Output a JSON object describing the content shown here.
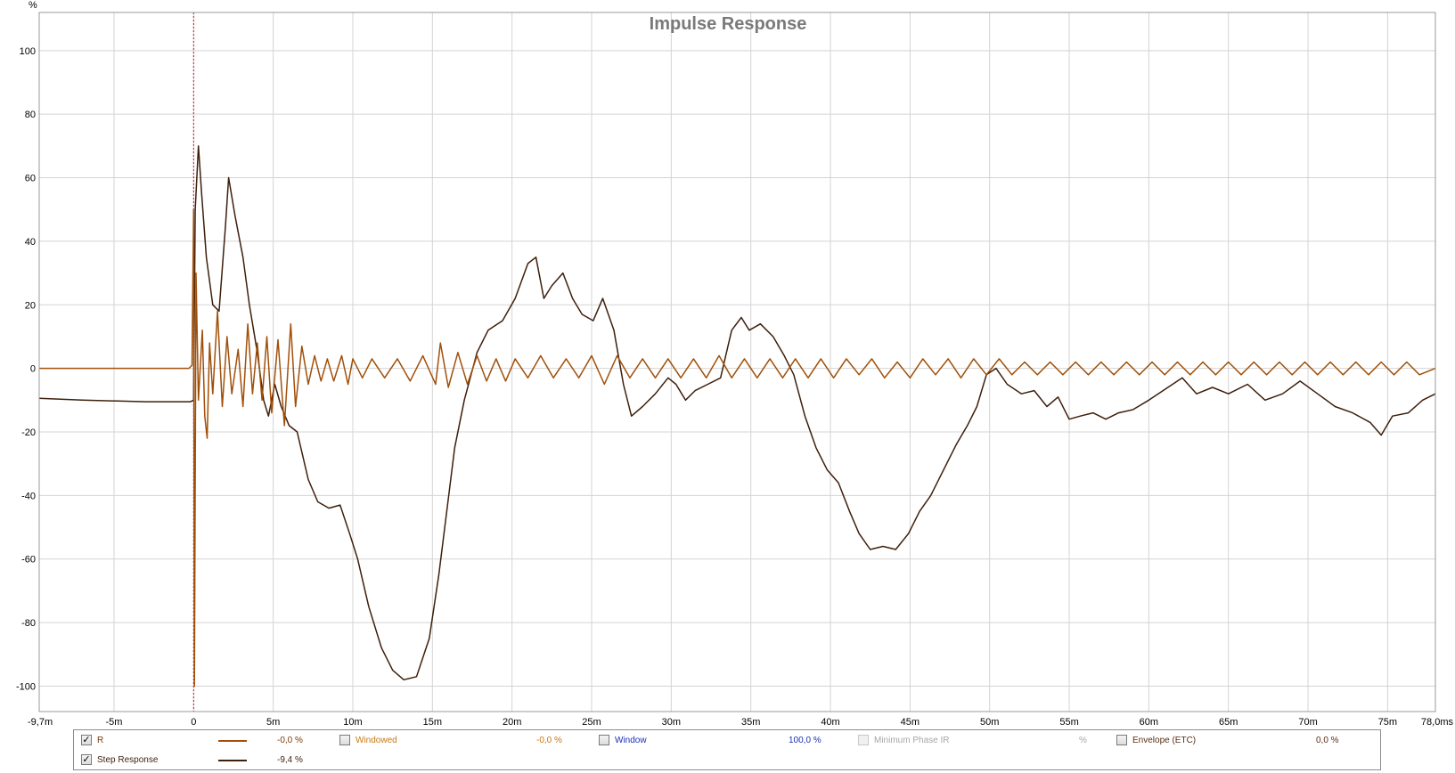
{
  "chart_data": {
    "type": "line",
    "title": "Impulse Response",
    "y_unit": "%",
    "x_unit": "ms",
    "xlim": [
      -9.7,
      78.0
    ],
    "ylim": [
      -108,
      112
    ],
    "grid": true,
    "x_ticks": [
      {
        "v": -9.7,
        "label": "-9,7m"
      },
      {
        "v": -5,
        "label": "-5m"
      },
      {
        "v": 0,
        "label": "0"
      },
      {
        "v": 5,
        "label": "5m"
      },
      {
        "v": 10,
        "label": "10m"
      },
      {
        "v": 15,
        "label": "15m"
      },
      {
        "v": 20,
        "label": "20m"
      },
      {
        "v": 25,
        "label": "25m"
      },
      {
        "v": 30,
        "label": "30m"
      },
      {
        "v": 35,
        "label": "35m"
      },
      {
        "v": 40,
        "label": "40m"
      },
      {
        "v": 45,
        "label": "45m"
      },
      {
        "v": 50,
        "label": "50m"
      },
      {
        "v": 55,
        "label": "55m"
      },
      {
        "v": 60,
        "label": "60m"
      },
      {
        "v": 65,
        "label": "65m"
      },
      {
        "v": 70,
        "label": "70m"
      },
      {
        "v": 75,
        "label": "75m"
      },
      {
        "v": 78,
        "label": "78,0ms"
      }
    ],
    "y_ticks": [
      100,
      80,
      60,
      40,
      20,
      0,
      -20,
      -40,
      -60,
      -80,
      -100
    ],
    "marker_x": 0,
    "series": [
      {
        "name": "Step Response",
        "color": "#3d1f0c",
        "points": [
          [
            -9.7,
            -9.4
          ],
          [
            -7,
            -10
          ],
          [
            -3,
            -10.5
          ],
          [
            -0.2,
            -10.5
          ],
          [
            0,
            -10
          ],
          [
            0.1,
            50
          ],
          [
            0.3,
            70
          ],
          [
            0.5,
            55
          ],
          [
            0.8,
            35
          ],
          [
            1.2,
            20
          ],
          [
            1.6,
            18
          ],
          [
            2.0,
            45
          ],
          [
            2.2,
            60
          ],
          [
            2.6,
            48
          ],
          [
            3.1,
            35
          ],
          [
            3.5,
            20
          ],
          [
            4.0,
            5
          ],
          [
            4.4,
            -10
          ],
          [
            4.7,
            -15
          ],
          [
            5.1,
            -5
          ],
          [
            5.5,
            -12
          ],
          [
            6.0,
            -18
          ],
          [
            6.5,
            -20
          ],
          [
            7.2,
            -35
          ],
          [
            7.8,
            -42
          ],
          [
            8.5,
            -44
          ],
          [
            9.2,
            -43
          ],
          [
            9.8,
            -52
          ],
          [
            10.3,
            -60
          ],
          [
            11.0,
            -75
          ],
          [
            11.8,
            -88
          ],
          [
            12.5,
            -95
          ],
          [
            13.2,
            -98
          ],
          [
            14.0,
            -97
          ],
          [
            14.8,
            -85
          ],
          [
            15.4,
            -65
          ],
          [
            15.9,
            -45
          ],
          [
            16.4,
            -25
          ],
          [
            17.0,
            -10
          ],
          [
            17.8,
            5
          ],
          [
            18.5,
            12
          ],
          [
            19.4,
            15
          ],
          [
            20.2,
            22
          ],
          [
            21.0,
            33
          ],
          [
            21.5,
            35
          ],
          [
            22.0,
            22
          ],
          [
            22.5,
            26
          ],
          [
            23.2,
            30
          ],
          [
            23.8,
            22
          ],
          [
            24.4,
            17
          ],
          [
            25.1,
            15
          ],
          [
            25.7,
            22
          ],
          [
            26.4,
            12
          ],
          [
            27.0,
            -5
          ],
          [
            27.5,
            -15
          ],
          [
            28.2,
            -12
          ],
          [
            29.0,
            -8
          ],
          [
            29.8,
            -3
          ],
          [
            30.3,
            -5
          ],
          [
            30.9,
            -10
          ],
          [
            31.5,
            -7
          ],
          [
            32.3,
            -5
          ],
          [
            33.1,
            -3
          ],
          [
            33.8,
            12
          ],
          [
            34.4,
            16
          ],
          [
            34.9,
            12
          ],
          [
            35.6,
            14
          ],
          [
            36.4,
            10
          ],
          [
            37.1,
            4
          ],
          [
            37.7,
            -2
          ],
          [
            38.4,
            -15
          ],
          [
            39.1,
            -25
          ],
          [
            39.8,
            -32
          ],
          [
            40.5,
            -36
          ],
          [
            41.2,
            -45
          ],
          [
            41.8,
            -52
          ],
          [
            42.5,
            -57
          ],
          [
            43.3,
            -56
          ],
          [
            44.1,
            -57
          ],
          [
            44.9,
            -52
          ],
          [
            45.6,
            -45
          ],
          [
            46.3,
            -40
          ],
          [
            47.1,
            -32
          ],
          [
            47.9,
            -24
          ],
          [
            48.6,
            -18
          ],
          [
            49.2,
            -12
          ],
          [
            49.8,
            -2
          ],
          [
            50.4,
            0
          ],
          [
            51.1,
            -5
          ],
          [
            52.0,
            -8
          ],
          [
            52.8,
            -7
          ],
          [
            53.6,
            -12
          ],
          [
            54.3,
            -9
          ],
          [
            55.0,
            -16
          ],
          [
            55.7,
            -15
          ],
          [
            56.5,
            -14
          ],
          [
            57.3,
            -16
          ],
          [
            58.1,
            -14
          ],
          [
            59.0,
            -13
          ],
          [
            60.0,
            -10
          ],
          [
            61.2,
            -6
          ],
          [
            62.1,
            -3
          ],
          [
            63.0,
            -8
          ],
          [
            64.0,
            -6
          ],
          [
            65.0,
            -8
          ],
          [
            66.2,
            -5
          ],
          [
            67.3,
            -10
          ],
          [
            68.4,
            -8
          ],
          [
            69.5,
            -4
          ],
          [
            70.6,
            -8
          ],
          [
            71.7,
            -12
          ],
          [
            72.8,
            -14
          ],
          [
            73.9,
            -17
          ],
          [
            74.6,
            -21
          ],
          [
            75.3,
            -15
          ],
          [
            76.3,
            -14
          ],
          [
            77.2,
            -10
          ],
          [
            78.0,
            -8
          ]
        ]
      },
      {
        "name": "R",
        "color": "#a0500a",
        "points": [
          [
            -9.7,
            0
          ],
          [
            -0.3,
            0
          ],
          [
            -0.1,
            1
          ],
          [
            0,
            50
          ],
          [
            0.05,
            -100
          ],
          [
            0.15,
            30
          ],
          [
            0.3,
            -10
          ],
          [
            0.55,
            12
          ],
          [
            0.7,
            -15
          ],
          [
            0.85,
            -22
          ],
          [
            1.0,
            8
          ],
          [
            1.2,
            -8
          ],
          [
            1.5,
            18
          ],
          [
            1.8,
            -12
          ],
          [
            2.1,
            10
          ],
          [
            2.4,
            -8
          ],
          [
            2.8,
            6
          ],
          [
            3.1,
            -12
          ],
          [
            3.4,
            14
          ],
          [
            3.7,
            -8
          ],
          [
            4.0,
            8
          ],
          [
            4.3,
            -10
          ],
          [
            4.6,
            10
          ],
          [
            4.9,
            -14
          ],
          [
            5.3,
            9
          ],
          [
            5.7,
            -18
          ],
          [
            6.1,
            14
          ],
          [
            6.4,
            -12
          ],
          [
            6.8,
            7
          ],
          [
            7.2,
            -5
          ],
          [
            7.6,
            4
          ],
          [
            8.0,
            -4
          ],
          [
            8.4,
            3
          ],
          [
            8.8,
            -4
          ],
          [
            9.3,
            4
          ],
          [
            9.7,
            -5
          ],
          [
            10.0,
            3
          ],
          [
            10.6,
            -3
          ],
          [
            11.2,
            3
          ],
          [
            12.0,
            -3
          ],
          [
            12.8,
            3
          ],
          [
            13.6,
            -4
          ],
          [
            14.4,
            4
          ],
          [
            15.2,
            -5
          ],
          [
            15.5,
            8
          ],
          [
            16.0,
            -6
          ],
          [
            16.6,
            5
          ],
          [
            17.2,
            -5
          ],
          [
            17.8,
            4
          ],
          [
            18.4,
            -4
          ],
          [
            19.0,
            3
          ],
          [
            19.6,
            -4
          ],
          [
            20.2,
            3
          ],
          [
            21.0,
            -3
          ],
          [
            21.8,
            4
          ],
          [
            22.6,
            -3
          ],
          [
            23.4,
            3
          ],
          [
            24.2,
            -3
          ],
          [
            25.0,
            4
          ],
          [
            25.8,
            -5
          ],
          [
            26.6,
            4
          ],
          [
            27.4,
            -3
          ],
          [
            28.2,
            3
          ],
          [
            29.0,
            -3
          ],
          [
            29.8,
            3
          ],
          [
            30.6,
            -3
          ],
          [
            31.4,
            3
          ],
          [
            32.2,
            -3
          ],
          [
            33.0,
            4
          ],
          [
            33.8,
            -3
          ],
          [
            34.6,
            3
          ],
          [
            35.4,
            -3
          ],
          [
            36.2,
            3
          ],
          [
            37.0,
            -3
          ],
          [
            37.8,
            3
          ],
          [
            38.6,
            -3
          ],
          [
            39.4,
            3
          ],
          [
            40.2,
            -3
          ],
          [
            41.0,
            3
          ],
          [
            41.8,
            -2
          ],
          [
            42.6,
            3
          ],
          [
            43.4,
            -3
          ],
          [
            44.2,
            2
          ],
          [
            45.0,
            -3
          ],
          [
            45.8,
            3
          ],
          [
            46.6,
            -2
          ],
          [
            47.4,
            3
          ],
          [
            48.2,
            -3
          ],
          [
            49.0,
            3
          ],
          [
            49.8,
            -2
          ],
          [
            50.6,
            3
          ],
          [
            51.4,
            -2
          ],
          [
            52.2,
            2
          ],
          [
            53.0,
            -2
          ],
          [
            53.8,
            2
          ],
          [
            54.6,
            -2
          ],
          [
            55.4,
            2
          ],
          [
            56.2,
            -2
          ],
          [
            57.0,
            2
          ],
          [
            57.8,
            -2
          ],
          [
            58.6,
            2
          ],
          [
            59.4,
            -2
          ],
          [
            60.2,
            2
          ],
          [
            61.0,
            -2
          ],
          [
            61.8,
            2
          ],
          [
            62.6,
            -2
          ],
          [
            63.4,
            2
          ],
          [
            64.2,
            -2
          ],
          [
            65.0,
            2
          ],
          [
            65.8,
            -2
          ],
          [
            66.6,
            2
          ],
          [
            67.4,
            -2
          ],
          [
            68.2,
            2
          ],
          [
            69.0,
            -2
          ],
          [
            69.8,
            2
          ],
          [
            70.6,
            -2
          ],
          [
            71.4,
            2
          ],
          [
            72.2,
            -2
          ],
          [
            73.0,
            2
          ],
          [
            73.8,
            -2
          ],
          [
            74.6,
            2
          ],
          [
            75.4,
            -2
          ],
          [
            76.2,
            2
          ],
          [
            77.0,
            -2
          ],
          [
            78.0,
            0
          ]
        ]
      }
    ]
  },
  "legend": {
    "r": {
      "label": "R",
      "value": "-0,0 %",
      "checked": true,
      "color": "#a0500a",
      "text_color": "#7a3a0a"
    },
    "windowed": {
      "label": "Windowed",
      "value": "-0,0 %",
      "checked": false,
      "color": "#c87814"
    },
    "window": {
      "label": "Window",
      "value": "100,0 %",
      "checked": false,
      "color": "#1b2fb4"
    },
    "min_phase": {
      "label": "Minimum Phase IR",
      "value": "%",
      "checked": false,
      "color": "#a6a6a6"
    },
    "envelope": {
      "label": "Envelope (ETC)",
      "value": "0,0 %",
      "checked": false,
      "color": "#5a2f14"
    },
    "step": {
      "label": "Step Response",
      "value": "-9,4 %",
      "checked": true,
      "color": "#3d1f0c",
      "text_color": "#3d1f0c"
    },
    "check_glyph": "✓"
  }
}
